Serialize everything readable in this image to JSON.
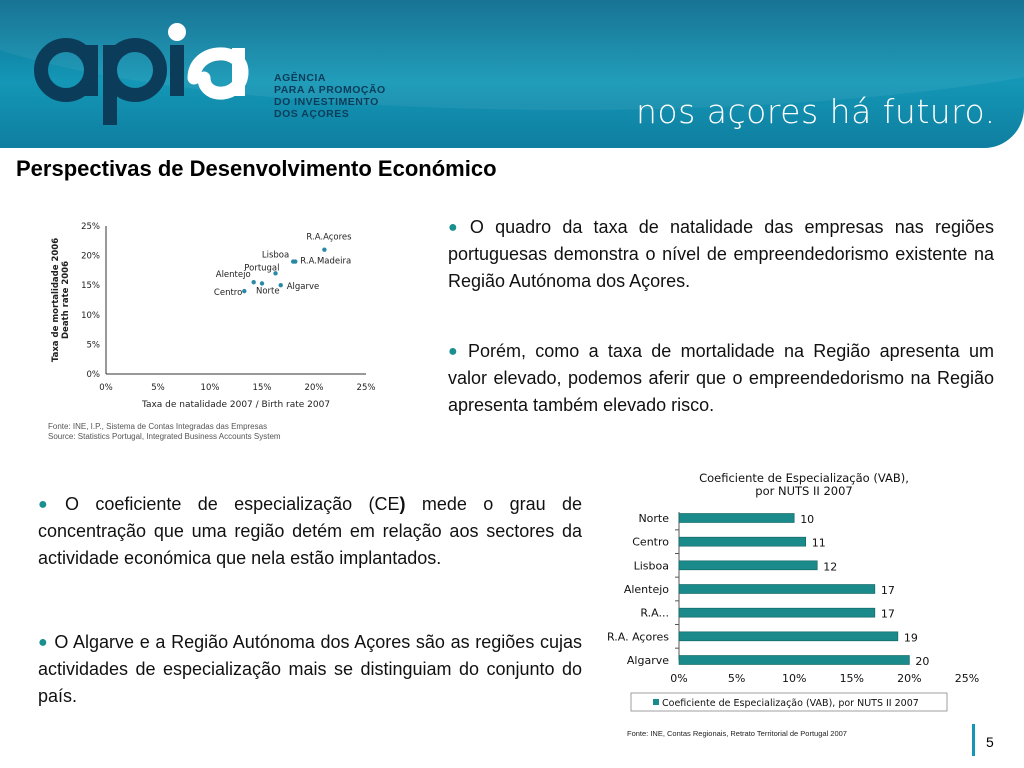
{
  "header": {
    "logo_word": "apia",
    "agency_lines": [
      "AGÊNCIA",
      "PARA A PROMOÇÃO",
      "DO INVESTIMENTO",
      "DOS AÇORES"
    ],
    "slogan": "nos açores há futuro."
  },
  "page_title": "Perspectivas de Desenvolvimento Económico",
  "paragraphs": {
    "p1": "O quadro da taxa de natalidade das empresas nas regiões portuguesas demonstra o nível de empreendedorismo existente na Região Autónoma dos Açores.",
    "p2": "Porém, como a taxa de mortalidade na Região apresenta um valor elevado, podemos aferir que o empreendedorismo na Região apresenta também elevado risco.",
    "p3_before": "O coeficiente de especialização (CE",
    "p3_bold": ")",
    "p3_after": " mede o grau de concentração que uma região detém em relação aos sectores da actividade económica que nela estão implantados.",
    "p4": "O Algarve e a Região Autónoma dos Açores são as regiões cujas actividades de especialização mais se distinguiam do conjunto do país."
  },
  "source1": [
    "Fonte: INE, I.P., Sistema de Contas Integradas das Empresas",
    "Source: Statistics Portugal, Integrated Business Accounts System"
  ],
  "source2": "Fonte: INE, Contas Regionais, Retrato Territorial de Portugal 2007",
  "page_number": "5",
  "colors": {
    "header": "#1497b6",
    "bar": "#1a8a8a",
    "bullet": "#1a8f8f",
    "scatter_point": "#2a8aa6"
  },
  "chart_data": [
    {
      "type": "scatter",
      "xlabel": "Taxa de natalidade 2007 / Birth rate 2007",
      "ylabel_lines": [
        "Taxa de mortalidade 2006",
        "Death rate 2006"
      ],
      "xlim": [
        0,
        25
      ],
      "ylim": [
        0,
        25
      ],
      "x_ticks": [
        "0%",
        "5%",
        "10%",
        "15%",
        "20%",
        "25%"
      ],
      "y_ticks": [
        "0%",
        "5%",
        "10%",
        "15%",
        "20%",
        "25%"
      ],
      "points": [
        {
          "label": "R.A.Açores",
          "x": 21.0,
          "y": 21.0
        },
        {
          "label": "Lisboa",
          "x": 18.0,
          "y": 19.0
        },
        {
          "label": "R.A.Madeira",
          "x": 18.2,
          "y": 19.0
        },
        {
          "label": "Portugal",
          "x": 16.3,
          "y": 17.0
        },
        {
          "label": "Alentejo",
          "x": 14.2,
          "y": 15.5
        },
        {
          "label": "Algarve",
          "x": 16.8,
          "y": 15.0
        },
        {
          "label": "Centro",
          "x": 13.3,
          "y": 14.0
        },
        {
          "label": "Norte",
          "x": 15.0,
          "y": 15.3
        }
      ]
    },
    {
      "type": "bar",
      "orientation": "horizontal",
      "title_lines": [
        "Coeficiente de Especialização (VAB),",
        "por NUTS II 2007"
      ],
      "categories": [
        "Norte",
        "Centro",
        "Lisboa",
        "Alentejo",
        "R.A...",
        "R.A. Açores",
        "Algarve"
      ],
      "values": [
        10,
        11,
        12,
        17,
        17,
        19,
        20
      ],
      "value_labels": [
        "10",
        "11",
        "12",
        "17",
        "17",
        "19",
        "20"
      ],
      "xlim": [
        0,
        25
      ],
      "x_ticks": [
        "0%",
        "5%",
        "10%",
        "15%",
        "20%",
        "25%"
      ],
      "legend": "Coeficiente de Especialização (VAB), por NUTS II 2007"
    }
  ]
}
